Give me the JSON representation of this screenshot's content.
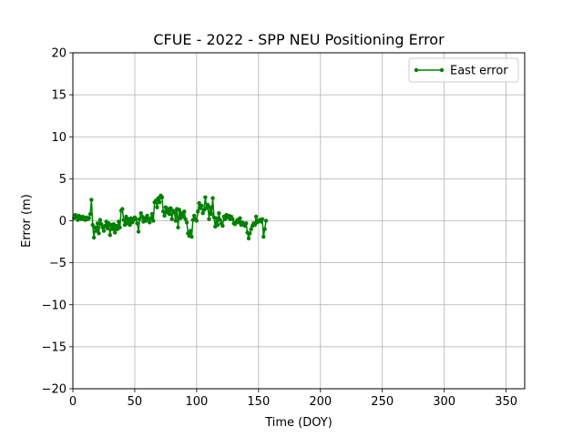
{
  "chart_data": {
    "type": "line",
    "title": "CFUE - 2022 - SPP NEU Positioning Error",
    "xlabel": "Time (DOY)",
    "ylabel": "Error (m)",
    "xlim": [
      0,
      365
    ],
    "ylim": [
      -20,
      20
    ],
    "xticks": [
      0,
      50,
      100,
      150,
      200,
      250,
      300,
      350
    ],
    "yticks": [
      -20,
      -15,
      -10,
      -5,
      0,
      5,
      10,
      15,
      20
    ],
    "grid": true,
    "legend_position": "top-right",
    "series": [
      {
        "name": "East error",
        "color": "#008000",
        "marker": "circle",
        "points": [
          [
            1,
            0.3
          ],
          [
            2,
            0.7
          ],
          [
            3,
            0.5
          ],
          [
            4,
            0.1
          ],
          [
            5,
            0.6
          ],
          [
            6,
            0.4
          ],
          [
            7,
            0.2
          ],
          [
            8,
            0.5
          ],
          [
            9,
            0.2
          ],
          [
            10,
            0.1
          ],
          [
            11,
            0.4
          ],
          [
            12,
            0.2
          ],
          [
            13,
            0.3
          ],
          [
            14,
            0.8
          ],
          [
            15,
            2.5
          ],
          [
            16,
            -0.5
          ],
          [
            17,
            -2.0
          ],
          [
            18,
            -0.8
          ],
          [
            19,
            -1.2
          ],
          [
            20,
            -0.3
          ],
          [
            21,
            -1.5
          ],
          [
            22,
            0.1
          ],
          [
            23,
            -0.4
          ],
          [
            24,
            -0.8
          ],
          [
            25,
            -1.2
          ],
          [
            26,
            -0.6
          ],
          [
            27,
            -0.1
          ],
          [
            28,
            -0.9
          ],
          [
            29,
            -0.3
          ],
          [
            30,
            -1.7
          ],
          [
            31,
            -0.5
          ],
          [
            32,
            -1.0
          ],
          [
            33,
            -0.4
          ],
          [
            34,
            -1.4
          ],
          [
            35,
            -0.6
          ],
          [
            36,
            -1.0
          ],
          [
            37,
            -0.1
          ],
          [
            38,
            -0.8
          ],
          [
            39,
            1.2
          ],
          [
            40,
            1.4
          ],
          [
            41,
            0.1
          ],
          [
            42,
            -0.5
          ],
          [
            43,
            0.5
          ],
          [
            44,
            -0.3
          ],
          [
            45,
            0.2
          ],
          [
            46,
            -0.5
          ],
          [
            47,
            0.3
          ],
          [
            48,
            -0.2
          ],
          [
            49,
            0.1
          ],
          [
            50,
            0.4
          ],
          [
            51,
            0.2
          ],
          [
            52,
            -0.3
          ],
          [
            53,
            -1.3
          ],
          [
            54,
            0.2
          ],
          [
            55,
            0.9
          ],
          [
            56,
            0.5
          ],
          [
            57,
            -0.1
          ],
          [
            58,
            0.3
          ],
          [
            59,
            0.0
          ],
          [
            60,
            0.6
          ],
          [
            61,
            0.2
          ],
          [
            62,
            -0.2
          ],
          [
            63,
            0.3
          ],
          [
            64,
            0.8
          ],
          [
            65,
            0.0
          ],
          [
            66,
            2.2
          ],
          [
            67,
            2.4
          ],
          [
            68,
            1.6
          ],
          [
            69,
            2.7
          ],
          [
            70,
            2.2
          ],
          [
            71,
            3.0
          ],
          [
            72,
            2.8
          ],
          [
            73,
            1.1
          ],
          [
            74,
            0.6
          ],
          [
            75,
            1.6
          ],
          [
            76,
            1.0
          ],
          [
            77,
            1.4
          ],
          [
            78,
            0.8
          ],
          [
            79,
            1.5
          ],
          [
            80,
            0.2
          ],
          [
            81,
            1.2
          ],
          [
            82,
            1.0
          ],
          [
            83,
            0.0
          ],
          [
            84,
            1.4
          ],
          [
            85,
            -0.8
          ],
          [
            86,
            1.3
          ],
          [
            87,
            0.3
          ],
          [
            88,
            0.9
          ],
          [
            89,
            0.5
          ],
          [
            90,
            1.1
          ],
          [
            91,
            0.2
          ],
          [
            92,
            -0.2
          ],
          [
            93,
            -1.5
          ],
          [
            94,
            -1.8
          ],
          [
            95,
            -1.2
          ],
          [
            96,
            -1.9
          ],
          [
            97,
            0.1
          ],
          [
            98,
            0.6
          ],
          [
            99,
            0.2
          ],
          [
            100,
            0.0
          ],
          [
            101,
            1.1
          ],
          [
            102,
            2.1
          ],
          [
            103,
            1.5
          ],
          [
            104,
            1.8
          ],
          [
            105,
            0.9
          ],
          [
            106,
            1.3
          ],
          [
            107,
            2.8
          ],
          [
            108,
            1.5
          ],
          [
            109,
            1.9
          ],
          [
            110,
            0.2
          ],
          [
            111,
            1.6
          ],
          [
            112,
            0.8
          ],
          [
            113,
            2.7
          ],
          [
            114,
            0.4
          ],
          [
            115,
            -0.7
          ],
          [
            116,
            0.3
          ],
          [
            117,
            -0.5
          ],
          [
            118,
            0.9
          ],
          [
            119,
            0.1
          ],
          [
            120,
            -0.3
          ],
          [
            121,
            -0.6
          ],
          [
            122,
            0.5
          ],
          [
            123,
            0.2
          ],
          [
            124,
            0.7
          ],
          [
            125,
            0.4
          ],
          [
            126,
            0.6
          ],
          [
            127,
            0.2
          ],
          [
            128,
            0.5
          ],
          [
            129,
            0.2
          ],
          [
            130,
            -0.3
          ],
          [
            131,
            -0.4
          ],
          [
            132,
            -0.1
          ],
          [
            133,
            0.1
          ],
          [
            134,
            -0.2
          ],
          [
            135,
            0.3
          ],
          [
            136,
            -0.5
          ],
          [
            137,
            -0.2
          ],
          [
            138,
            -0.4
          ],
          [
            139,
            -0.6
          ],
          [
            140,
            -0.3
          ],
          [
            141,
            -1.4
          ],
          [
            142,
            -2.1
          ],
          [
            143,
            -1.5
          ],
          [
            144,
            -1.0
          ],
          [
            145,
            -0.6
          ],
          [
            146,
            -0.3
          ],
          [
            147,
            -0.5
          ],
          [
            148,
            0.5
          ],
          [
            149,
            -0.2
          ],
          [
            150,
            0.0
          ],
          [
            151,
            0.1
          ],
          [
            152,
            -0.1
          ],
          [
            153,
            0.2
          ],
          [
            154,
            -1.9
          ],
          [
            155,
            -1.0
          ],
          [
            156,
            0.0
          ]
        ]
      }
    ]
  }
}
